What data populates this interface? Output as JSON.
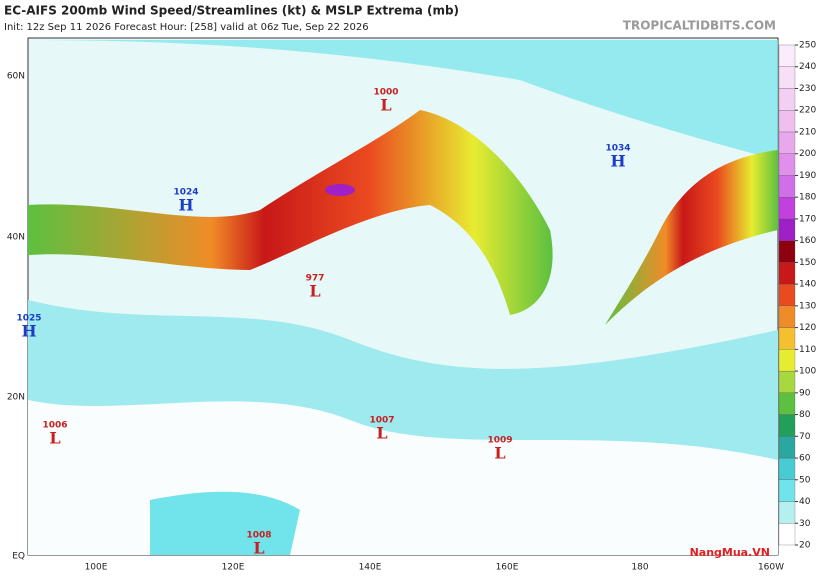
{
  "header": {
    "title": "EC-AIFS 200mb Wind Speed/Streamlines (kt) & MSLP Extrema (mb)",
    "subtitle": "Init: 12z Sep 11 2026   Forecast Hour: [258]   valid at 06z Tue, Sep 22 2026",
    "source": "TROPICALTIDBITS.COM"
  },
  "map": {
    "lat_labels": [
      "60N",
      "40N",
      "20N",
      "EQ"
    ],
    "lon_labels": [
      "100E",
      "120E",
      "140E",
      "160E",
      "180",
      "160W"
    ],
    "centers": [
      {
        "value": "1000",
        "letter": "L"
      },
      {
        "value": "1034",
        "letter": "H"
      },
      {
        "value": "1024",
        "letter": "H"
      },
      {
        "value": "977",
        "letter": "L"
      },
      {
        "value": "1025",
        "letter": "H"
      },
      {
        "value": "1006",
        "letter": "L"
      },
      {
        "value": "1007",
        "letter": "L"
      },
      {
        "value": "1009",
        "letter": "L"
      },
      {
        "value": "1008",
        "letter": "L"
      }
    ]
  },
  "colorbar": {
    "ticks": [
      20,
      30,
      40,
      50,
      60,
      70,
      80,
      90,
      100,
      110,
      120,
      130,
      140,
      150,
      160,
      170,
      180,
      190,
      200,
      210,
      220,
      230,
      240,
      250
    ],
    "colors": [
      "#ffffff",
      "#b4f0f0",
      "#70e4ea",
      "#48ccd4",
      "#2aa7a0",
      "#22a05a",
      "#5cc040",
      "#a8d840",
      "#e8ec30",
      "#f4c030",
      "#f08c28",
      "#ea4a20",
      "#c81818",
      "#8e0010",
      "#a020c8",
      "#c040e0",
      "#d070e8",
      "#e090ea",
      "#e8a8ec",
      "#efbfef",
      "#f3cff3",
      "#f7dff7",
      "#fbecfb"
    ]
  },
  "watermark": "NangMua.VN"
}
